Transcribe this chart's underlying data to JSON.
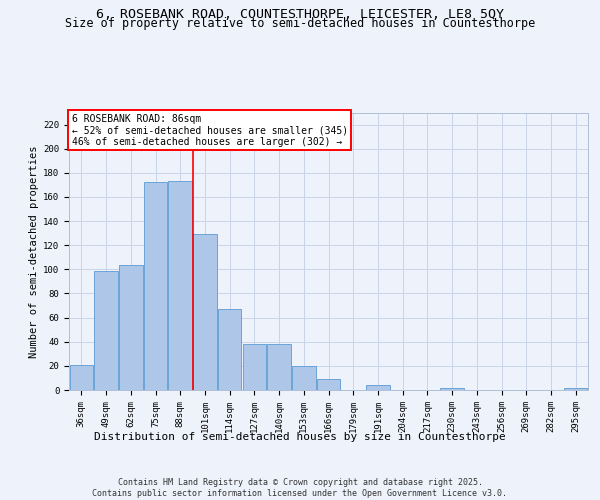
{
  "title1": "6, ROSEBANK ROAD, COUNTESTHORPE, LEICESTER, LE8 5QY",
  "title2": "Size of property relative to semi-detached houses in Countesthorpe",
  "xlabel": "Distribution of semi-detached houses by size in Countesthorpe",
  "ylabel": "Number of semi-detached properties",
  "categories": [
    "36sqm",
    "49sqm",
    "62sqm",
    "75sqm",
    "88sqm",
    "101sqm",
    "114sqm",
    "127sqm",
    "140sqm",
    "153sqm",
    "166sqm",
    "179sqm",
    "191sqm",
    "204sqm",
    "217sqm",
    "230sqm",
    "243sqm",
    "256sqm",
    "269sqm",
    "282sqm",
    "295sqm"
  ],
  "values": [
    21,
    99,
    104,
    172,
    173,
    129,
    67,
    38,
    38,
    20,
    9,
    0,
    4,
    0,
    0,
    2,
    0,
    0,
    0,
    0,
    2
  ],
  "bar_color": "#aec6e8",
  "bar_edge_color": "#5b9bd5",
  "background_color": "#eef2fb",
  "grid_color": "#c8d4e8",
  "vline_x": 4.5,
  "vline_color": "red",
  "annotation_title": "6 ROSEBANK ROAD: 86sqm",
  "annotation_line1": "← 52% of semi-detached houses are smaller (345)",
  "annotation_line2": "46% of semi-detached houses are larger (302) →",
  "ylim": [
    0,
    230
  ],
  "yticks": [
    0,
    20,
    40,
    60,
    80,
    100,
    120,
    140,
    160,
    180,
    200,
    220
  ],
  "footer": "Contains HM Land Registry data © Crown copyright and database right 2025.\nContains public sector information licensed under the Open Government Licence v3.0.",
  "title1_fontsize": 9.5,
  "title2_fontsize": 8.5,
  "xlabel_fontsize": 8,
  "ylabel_fontsize": 7.5,
  "tick_fontsize": 6.5,
  "footer_fontsize": 6,
  "annot_fontsize": 7
}
